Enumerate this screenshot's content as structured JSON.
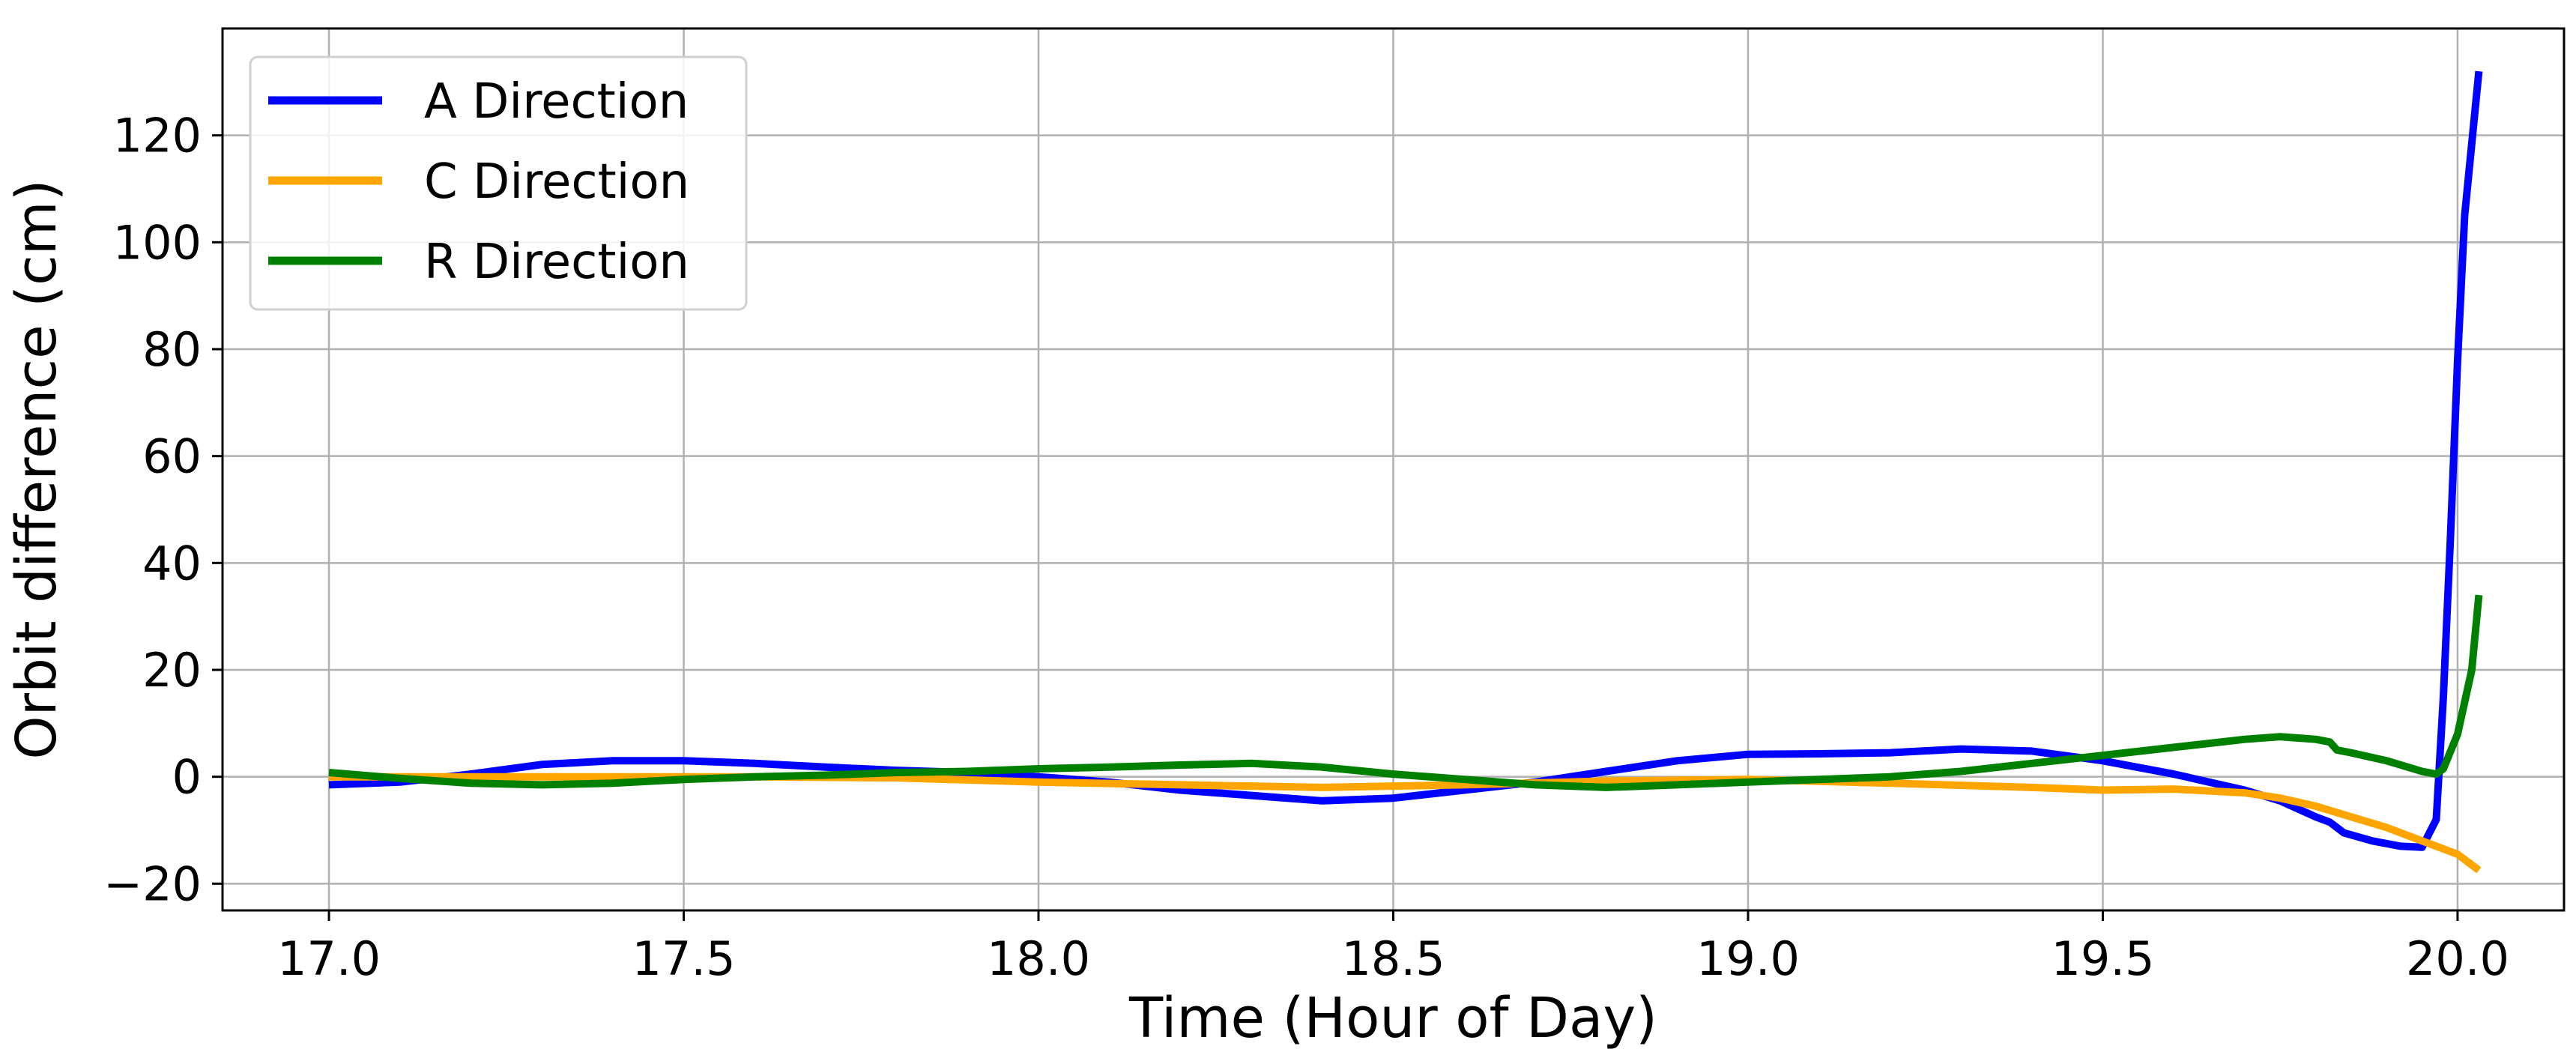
{
  "chart_data": {
    "type": "line",
    "title": "",
    "xlabel": "Time (Hour of Day)",
    "ylabel": "Orbit difference  (cm)",
    "xlim": [
      16.85,
      20.15
    ],
    "ylim": [
      -25,
      140
    ],
    "x_ticks": [
      17.0,
      17.5,
      18.0,
      18.5,
      19.0,
      19.5,
      20.0
    ],
    "x_tick_labels": [
      "17.0",
      "17.5",
      "18.0",
      "18.5",
      "19.0",
      "19.5",
      "20.0"
    ],
    "y_ticks": [
      -20,
      0,
      20,
      40,
      60,
      80,
      100,
      120
    ],
    "y_tick_labels": [
      "−20",
      "0",
      "20",
      "40",
      "60",
      "80",
      "100",
      "120"
    ],
    "grid": true,
    "legend_position": "top-left",
    "series": [
      {
        "name": "A Direction",
        "color": "#0000ff",
        "points": [
          [
            17.0,
            -1.5
          ],
          [
            17.1,
            -1.0
          ],
          [
            17.2,
            0.5
          ],
          [
            17.3,
            2.3
          ],
          [
            17.4,
            3.0
          ],
          [
            17.5,
            3.0
          ],
          [
            17.6,
            2.5
          ],
          [
            17.7,
            1.8
          ],
          [
            17.8,
            1.2
          ],
          [
            17.9,
            0.8
          ],
          [
            18.0,
            0.0
          ],
          [
            18.1,
            -1.0
          ],
          [
            18.2,
            -2.5
          ],
          [
            18.3,
            -3.5
          ],
          [
            18.4,
            -4.5
          ],
          [
            18.5,
            -4.0
          ],
          [
            18.6,
            -2.5
          ],
          [
            18.7,
            -1.0
          ],
          [
            18.8,
            1.0
          ],
          [
            18.9,
            3.0
          ],
          [
            19.0,
            4.2
          ],
          [
            19.1,
            4.3
          ],
          [
            19.2,
            4.5
          ],
          [
            19.3,
            5.2
          ],
          [
            19.4,
            4.8
          ],
          [
            19.5,
            3.0
          ],
          [
            19.6,
            0.5
          ],
          [
            19.7,
            -2.5
          ],
          [
            19.75,
            -4.5
          ],
          [
            19.8,
            -7.5
          ],
          [
            19.82,
            -8.5
          ],
          [
            19.84,
            -10.5
          ],
          [
            19.88,
            -12.0
          ],
          [
            19.92,
            -13.0
          ],
          [
            19.95,
            -13.2
          ],
          [
            19.97,
            -8.0
          ],
          [
            19.98,
            15.0
          ],
          [
            19.99,
            45.0
          ],
          [
            20.0,
            78.0
          ],
          [
            20.01,
            105.0
          ],
          [
            20.03,
            132.0
          ]
        ]
      },
      {
        "name": "C Direction",
        "color": "#ffa500",
        "points": [
          [
            17.0,
            0.0
          ],
          [
            17.2,
            0.0
          ],
          [
            17.4,
            0.0
          ],
          [
            17.6,
            0.0
          ],
          [
            17.8,
            -0.2
          ],
          [
            18.0,
            -1.0
          ],
          [
            18.2,
            -1.5
          ],
          [
            18.4,
            -2.0
          ],
          [
            18.6,
            -1.5
          ],
          [
            18.8,
            -0.8
          ],
          [
            19.0,
            -0.5
          ],
          [
            19.2,
            -1.2
          ],
          [
            19.4,
            -2.0
          ],
          [
            19.5,
            -2.5
          ],
          [
            19.6,
            -2.3
          ],
          [
            19.7,
            -3.0
          ],
          [
            19.75,
            -4.0
          ],
          [
            19.8,
            -5.5
          ],
          [
            19.85,
            -7.5
          ],
          [
            19.9,
            -9.5
          ],
          [
            19.95,
            -12.0
          ],
          [
            20.0,
            -14.5
          ],
          [
            20.03,
            -17.5
          ]
        ]
      },
      {
        "name": "R Direction",
        "color": "#008000",
        "points": [
          [
            17.0,
            0.8
          ],
          [
            17.1,
            -0.3
          ],
          [
            17.2,
            -1.2
          ],
          [
            17.3,
            -1.5
          ],
          [
            17.4,
            -1.2
          ],
          [
            17.5,
            -0.5
          ],
          [
            17.6,
            0.0
          ],
          [
            17.7,
            0.3
          ],
          [
            17.8,
            0.8
          ],
          [
            17.9,
            1.0
          ],
          [
            18.0,
            1.5
          ],
          [
            18.1,
            1.8
          ],
          [
            18.2,
            2.2
          ],
          [
            18.3,
            2.5
          ],
          [
            18.4,
            1.8
          ],
          [
            18.5,
            0.5
          ],
          [
            18.6,
            -0.5
          ],
          [
            18.7,
            -1.5
          ],
          [
            18.8,
            -2.0
          ],
          [
            18.9,
            -1.5
          ],
          [
            19.0,
            -1.0
          ],
          [
            19.1,
            -0.5
          ],
          [
            19.2,
            0.0
          ],
          [
            19.3,
            1.0
          ],
          [
            19.4,
            2.5
          ],
          [
            19.5,
            4.0
          ],
          [
            19.6,
            5.5
          ],
          [
            19.7,
            7.0
          ],
          [
            19.75,
            7.5
          ],
          [
            19.8,
            7.0
          ],
          [
            19.82,
            6.5
          ],
          [
            19.83,
            5.0
          ],
          [
            19.85,
            4.5
          ],
          [
            19.9,
            3.0
          ],
          [
            19.95,
            1.0
          ],
          [
            19.97,
            0.5
          ],
          [
            19.98,
            1.5
          ],
          [
            20.0,
            8.0
          ],
          [
            20.02,
            20.0
          ],
          [
            20.03,
            34.0
          ]
        ]
      }
    ]
  }
}
